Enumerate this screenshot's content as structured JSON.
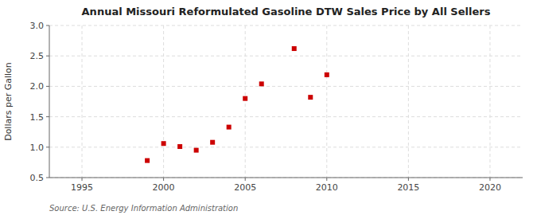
{
  "chart_data": {
    "type": "scatter",
    "title": "Annual Missouri Reformulated Gasoline DTW Sales Price by All Sellers",
    "y_label": "Dollars per Gallon",
    "annotations": [
      "Source: U.S. Energy Information Administration"
    ],
    "x": [
      1999,
      2000,
      2001,
      2002,
      2003,
      2004,
      2005,
      2006,
      2008,
      2009,
      2010
    ],
    "values": [
      0.78,
      1.06,
      1.01,
      0.95,
      1.08,
      1.33,
      1.8,
      2.04,
      2.62,
      1.82,
      2.19
    ],
    "color": "#cc0000",
    "marker": "square",
    "xlim": [
      1993,
      2022
    ],
    "ylim": [
      0.5,
      3.0
    ],
    "xticks": [
      1995,
      2000,
      2005,
      2010,
      2015,
      2020
    ],
    "yticks": [
      0.5,
      {
        "value": 1.0,
        "label": "1.0"
      },
      1.5,
      {
        "value": 2.0,
        "label": "2.0"
      },
      2.5,
      {
        "value": 3.0,
        "label": "3.0"
      }
    ],
    "grid": true
  }
}
